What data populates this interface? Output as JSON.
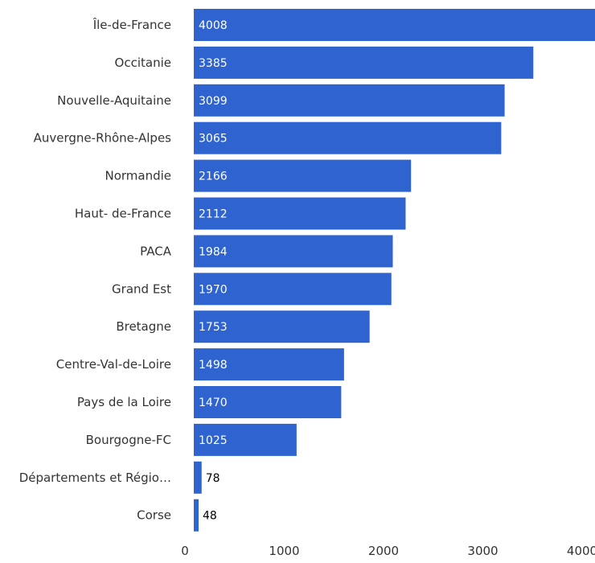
{
  "chart_data": {
    "type": "bar",
    "orientation": "horizontal",
    "categories": [
      "Île-de-France",
      "Occitanie",
      "Nouvelle-Aquitaine",
      "Auvergne-Rhône-Alpes",
      "Normandie",
      "Haut- de-France",
      "PACA",
      "Grand Est",
      "Bretagne",
      "Centre-Val-de-Loire",
      "Pays de la Loire",
      "Bourgogne-FC",
      "Départements et Régio…",
      "Corse"
    ],
    "values": [
      4008,
      3385,
      3099,
      3065,
      2166,
      2112,
      1984,
      1970,
      1753,
      1498,
      1470,
      1025,
      78,
      48
    ],
    "data_labels": [
      "4008",
      "3385",
      "3099",
      "3065",
      "2166",
      "2112",
      "1984",
      "1970",
      "1753",
      "1498",
      "1470",
      "1025",
      "78",
      "48"
    ],
    "xticks": [
      0,
      1000,
      2000,
      3000,
      4000
    ],
    "xtick_labels": [
      "0",
      "1000",
      "2000",
      "3000",
      "4000"
    ],
    "xlim": [
      0,
      4000
    ],
    "bar_color": "#2f63cf",
    "grid": false,
    "legend": "none",
    "title": "",
    "xlabel": "",
    "ylabel": ""
  }
}
